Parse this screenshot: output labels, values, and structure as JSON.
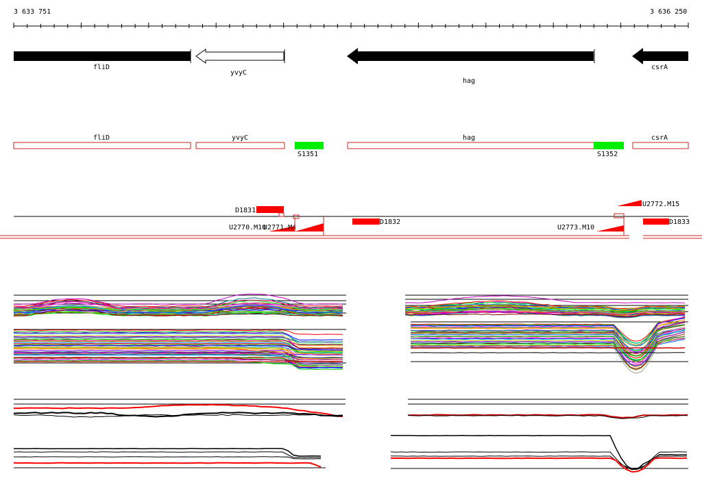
{
  "ruler": {
    "start_label": "3 633 751",
    "end_label": "3 636 250"
  },
  "genes": [
    {
      "name": "fliD",
      "strand": "reverse",
      "filled": true
    },
    {
      "name": "yvyC",
      "strand": "reverse",
      "filled": false
    },
    {
      "name": "hag",
      "strand": "reverse",
      "filled": true
    },
    {
      "name": "csrA",
      "strand": "reverse",
      "filled": true
    }
  ],
  "annotated_genes": [
    "fliD",
    "yvyC",
    "hag",
    "csrA"
  ],
  "segments": [
    "S1351",
    "S1352"
  ],
  "features": [
    "D1831",
    "U2770.M10",
    "U2771.M4",
    "D1832",
    "U2773.M10",
    "U2772.M15",
    "D1833"
  ],
  "colors": {
    "gene_fill": "#000000",
    "outline": "#cc2222",
    "segment": "#00ee00",
    "feature": "#ff0000"
  }
}
